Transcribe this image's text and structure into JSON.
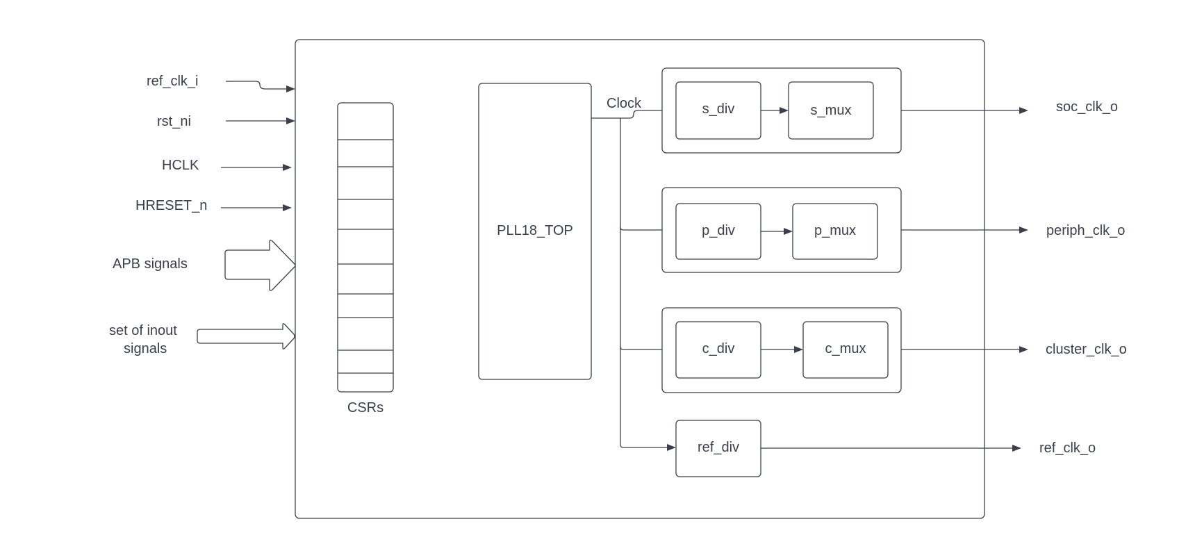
{
  "inputs": {
    "ref_clk_i": "ref_clk_i",
    "rst_ni": "rst_ni",
    "hclk": "HCLK",
    "hreset_n": "HRESET_n",
    "apb_signals": "APB signals",
    "inout_line1": "set of inout",
    "inout_line2": "signals"
  },
  "blocks": {
    "csrs": "CSRs",
    "pll": "PLL18_TOP",
    "clock_label": "Clock",
    "s_div": "s_div",
    "s_mux": "s_mux",
    "p_div": "p_div",
    "p_mux": "p_mux",
    "c_div": "c_div",
    "c_mux": "c_mux",
    "ref_div": "ref_div"
  },
  "outputs": {
    "soc_clk_o": "soc_clk_o",
    "periph_clk_o": "periph_clk_o",
    "cluster_clk_o": "cluster_clk_o",
    "ref_clk_o": "ref_clk_o"
  },
  "colors": {
    "stroke": "#3a3f4b",
    "background": "#ffffff"
  }
}
